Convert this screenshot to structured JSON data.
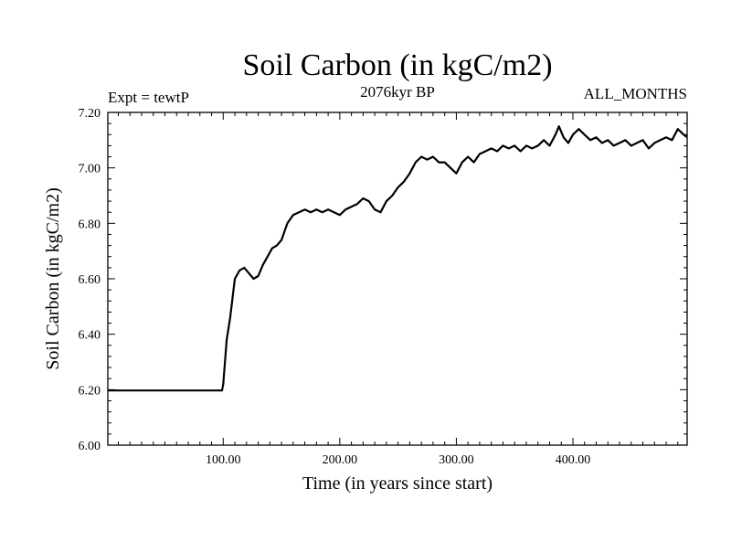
{
  "chart_data": {
    "type": "line",
    "title": "Soil Carbon (in kgC/m2)",
    "subtitle_left": "Expt = tewtP",
    "subtitle_center": "2076kyr BP",
    "subtitle_right": "ALL_MONTHS",
    "xlabel": "Time (in years since start)",
    "ylabel": "Soil Carbon (in kgC/m2)",
    "xlim": [
      1,
      498
    ],
    "ylim": [
      6.0,
      7.2
    ],
    "x_ticks": [
      100,
      200,
      300,
      400
    ],
    "x_tick_labels": [
      "100.00",
      "200.00",
      "300.00",
      "400.00"
    ],
    "y_ticks": [
      6.0,
      6.2,
      6.4,
      6.6,
      6.8,
      7.0,
      7.2
    ],
    "y_tick_labels": [
      "6.00",
      "6.20",
      "6.40",
      "6.60",
      "6.80",
      "7.00",
      "7.20"
    ],
    "series": [
      {
        "name": "Soil Carbon",
        "color": "#000000",
        "x": [
          1,
          99,
          100,
          103,
          106,
          110,
          114,
          118,
          122,
          126,
          130,
          134,
          138,
          142,
          146,
          150,
          155,
          160,
          165,
          170,
          175,
          180,
          185,
          190,
          195,
          200,
          205,
          210,
          215,
          220,
          225,
          230,
          235,
          240,
          245,
          250,
          255,
          260,
          265,
          270,
          275,
          280,
          285,
          290,
          295,
          300,
          305,
          310,
          315,
          320,
          325,
          330,
          335,
          340,
          345,
          350,
          355,
          360,
          365,
          370,
          375,
          380,
          385,
          388,
          392,
          396,
          400,
          405,
          410,
          415,
          420,
          425,
          430,
          435,
          440,
          445,
          450,
          455,
          460,
          465,
          470,
          475,
          480,
          485,
          490,
          495,
          498
        ],
        "values": [
          6.197,
          6.197,
          6.22,
          6.38,
          6.46,
          6.6,
          6.63,
          6.64,
          6.62,
          6.6,
          6.61,
          6.65,
          6.68,
          6.71,
          6.72,
          6.74,
          6.8,
          6.83,
          6.84,
          6.85,
          6.84,
          6.85,
          6.84,
          6.85,
          6.84,
          6.83,
          6.85,
          6.86,
          6.87,
          6.89,
          6.88,
          6.85,
          6.84,
          6.88,
          6.9,
          6.93,
          6.95,
          6.98,
          7.02,
          7.04,
          7.03,
          7.04,
          7.02,
          7.02,
          7.0,
          6.98,
          7.02,
          7.04,
          7.02,
          7.05,
          7.06,
          7.07,
          7.06,
          7.08,
          7.07,
          7.08,
          7.06,
          7.08,
          7.07,
          7.08,
          7.1,
          7.08,
          7.12,
          7.15,
          7.11,
          7.09,
          7.12,
          7.14,
          7.12,
          7.1,
          7.11,
          7.09,
          7.1,
          7.08,
          7.09,
          7.1,
          7.08,
          7.09,
          7.1,
          7.07,
          7.09,
          7.1,
          7.11,
          7.1,
          7.14,
          7.12,
          7.11
        ]
      }
    ]
  }
}
